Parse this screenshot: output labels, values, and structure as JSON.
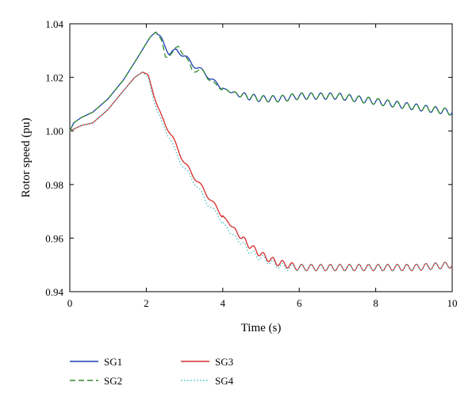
{
  "chart_data": {
    "type": "line",
    "title": "",
    "xlabel": "Time (s)",
    "ylabel": "Rotor speed (pu)",
    "xlim": [
      0,
      10
    ],
    "ylim": [
      0.94,
      1.04
    ],
    "xticks": [
      0,
      2,
      4,
      6,
      8,
      10
    ],
    "yticks": [
      0.94,
      0.96,
      0.98,
      1.0,
      1.02,
      1.04
    ],
    "ytick_labels": [
      "0.94",
      "0.96",
      "0.98",
      "1.00",
      "1.02",
      "1.04"
    ],
    "grid": false,
    "legend_position": "below-plot",
    "series": [
      {
        "name": "SG1",
        "color": "#1f3fb5",
        "dash": "solid",
        "x": [
          0.0,
          0.1,
          0.3,
          0.6,
          1.0,
          1.4,
          1.8,
          2.1,
          2.25,
          2.4,
          2.6,
          2.8,
          3.0,
          3.2,
          3.5,
          3.8,
          4.0,
          4.3,
          4.6,
          5.0,
          5.5,
          6.0,
          7.0,
          8.0,
          9.0,
          9.5,
          10.0
        ],
        "y": [
          1.0,
          1.003,
          1.005,
          1.007,
          1.012,
          1.019,
          1.028,
          1.035,
          1.037,
          1.034,
          1.029,
          1.03,
          1.028,
          1.025,
          1.022,
          1.018,
          1.016,
          1.014,
          1.013,
          1.012,
          1.012,
          1.013,
          1.013,
          1.011,
          1.009,
          1.008,
          1.007
        ]
      },
      {
        "name": "SG2",
        "color": "#2e8b2e",
        "dash": "dashed",
        "x": [
          0.0,
          0.1,
          0.3,
          0.6,
          1.0,
          1.4,
          1.8,
          2.1,
          2.25,
          2.4,
          2.5,
          2.7,
          2.85,
          3.0,
          3.2,
          3.5,
          3.8,
          4.0,
          4.3,
          4.6,
          5.0,
          5.5,
          6.0,
          7.0,
          8.0,
          9.0,
          9.5,
          10.0
        ],
        "y": [
          1.0,
          1.003,
          1.005,
          1.007,
          1.012,
          1.019,
          1.028,
          1.035,
          1.037,
          1.033,
          1.028,
          1.029,
          1.032,
          1.028,
          1.023,
          1.022,
          1.017,
          1.016,
          1.014,
          1.013,
          1.012,
          1.012,
          1.013,
          1.013,
          1.011,
          1.009,
          1.008,
          1.007
        ]
      },
      {
        "name": "SG3",
        "color": "#d62b2b",
        "dash": "solid",
        "x": [
          0.0,
          0.3,
          0.6,
          1.0,
          1.4,
          1.7,
          1.9,
          2.05,
          2.2,
          2.4,
          2.6,
          2.8,
          3.0,
          3.3,
          3.6,
          3.9,
          4.2,
          4.5,
          4.8,
          5.1,
          5.4,
          5.7,
          6.0,
          7.0,
          8.0,
          9.0,
          10.0
        ],
        "y": [
          1.0,
          1.002,
          1.003,
          1.008,
          1.015,
          1.02,
          1.022,
          1.021,
          1.013,
          1.005,
          1.0,
          0.994,
          0.988,
          0.982,
          0.976,
          0.97,
          0.965,
          0.96,
          0.956,
          0.953,
          0.951,
          0.95,
          0.949,
          0.949,
          0.949,
          0.949,
          0.95
        ]
      },
      {
        "name": "SG4",
        "color": "#3fbfbf",
        "dash": "dotted",
        "x": [
          0.0,
          0.3,
          0.6,
          1.0,
          1.4,
          1.7,
          1.9,
          2.05,
          2.2,
          2.4,
          2.6,
          2.8,
          3.0,
          3.3,
          3.6,
          3.9,
          4.2,
          4.5,
          4.8,
          5.1,
          5.4,
          5.7,
          6.0,
          7.0,
          8.0,
          9.0,
          10.0
        ],
        "y": [
          1.0,
          1.002,
          1.003,
          1.008,
          1.015,
          1.02,
          1.022,
          1.02,
          1.011,
          1.003,
          0.998,
          0.991,
          0.986,
          0.98,
          0.973,
          0.968,
          0.962,
          0.958,
          0.954,
          0.952,
          0.95,
          0.949,
          0.949,
          0.949,
          0.949,
          0.949,
          0.95
        ]
      }
    ],
    "ripple": {
      "amplitude": 0.0012,
      "period": 0.25,
      "start": 4.0
    }
  }
}
